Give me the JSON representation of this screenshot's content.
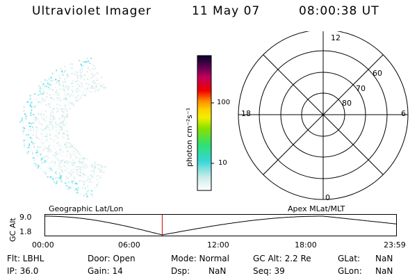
{
  "title": {
    "instrument": "Ultraviolet Imager",
    "date": "11 May 07",
    "time": "08:00:38 UT"
  },
  "colorbar": {
    "unit_label": "photon cm⁻²s⁻¹",
    "tick_100": "100",
    "tick_10": "10"
  },
  "polar_plot": {
    "mlt_labels": {
      "top": "12",
      "left": "18",
      "right": "6",
      "bottom": "0"
    },
    "lat_labels": [
      "60",
      "70",
      "80"
    ]
  },
  "timeline": {
    "left_label": "Geographic Lat/Lon",
    "right_label": "Apex MLat/MLT",
    "y_axis_label": "GC Alt",
    "y_max": "9.0",
    "y_min": "1.8",
    "x_ticks": [
      "00:00",
      "06:00",
      "12:00",
      "18:00",
      "23:59"
    ],
    "marker_time_hours": 8.01
  },
  "footer": {
    "flt": "Flt: LBHL",
    "ip": "IP: 36.0",
    "door": "Door: Open",
    "gain": "Gain: 14",
    "mode": "Mode: Normal",
    "dsp_label": "Dsp:",
    "dsp_value": "NaN",
    "gc_alt": "GC Alt: 2.2 Re",
    "seq": "Seq: 39",
    "glat_label": "GLat:",
    "glat_value": "NaN",
    "glon_label": "GLon:",
    "glon_value": "NaN"
  },
  "colors": {
    "marker": "#cc0000",
    "aurora_cyan": "#4fd8e6",
    "aurora_pale": "#cde9e6"
  }
}
